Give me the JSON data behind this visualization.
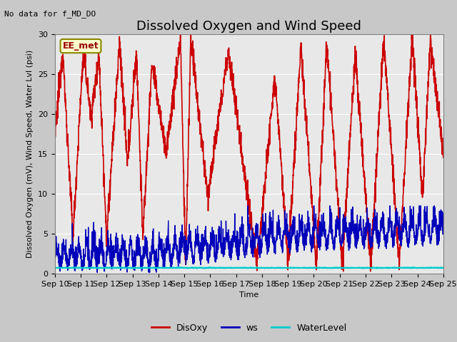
{
  "title": "Dissolved Oxygen and Wind Speed",
  "subtitle": "No data for f_MD_DO",
  "xlabel": "Time",
  "ylabel": "Dissolved Oxygen (mV), Wind Speed, Water Lvl (psi)",
  "ylim": [
    0,
    30
  ],
  "yticks": [
    0,
    5,
    10,
    15,
    20,
    25,
    30
  ],
  "xtick_labels": [
    "Sep 10",
    "Sep 11",
    "Sep 12",
    "Sep 13",
    "Sep 14",
    "Sep 15",
    "Sep 16",
    "Sep 17",
    "Sep 18",
    "Sep 19",
    "Sep 20",
    "Sep 21",
    "Sep 22",
    "Sep 23",
    "Sep 24",
    "Sep 25"
  ],
  "fig_bg_color": "#c8c8c8",
  "plot_bg_color": "#e8e8e8",
  "annotation_box": "EE_met",
  "disoxy_color": "#cc0000",
  "ws_color": "#0000bb",
  "wl_color": "#00cccc",
  "disoxy_linewidth": 1.2,
  "ws_linewidth": 1.0,
  "wl_linewidth": 1.5,
  "title_fontsize": 13,
  "axis_label_fontsize": 8,
  "tick_fontsize": 8,
  "legend_fontsize": 9,
  "subtitle_fontsize": 8
}
